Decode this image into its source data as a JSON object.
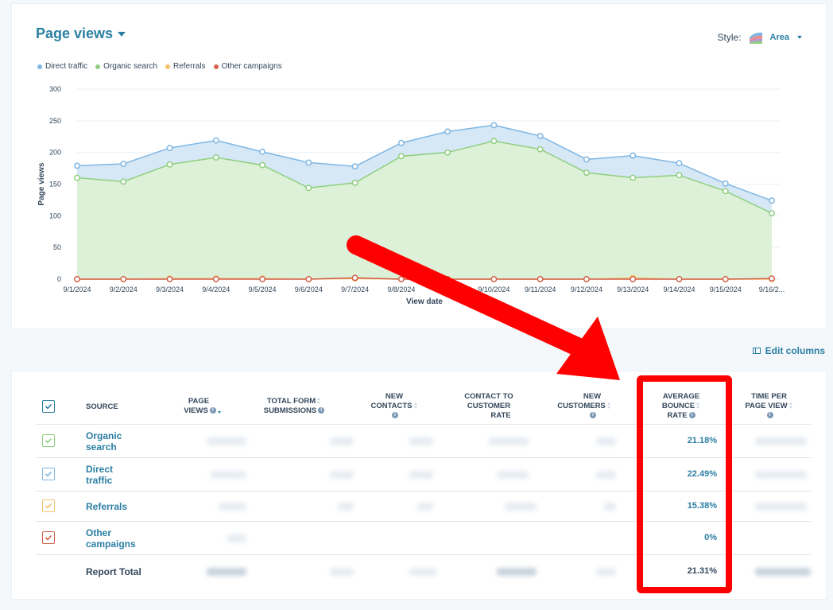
{
  "header": {
    "title": "Page views",
    "style_label": "Style:",
    "style_value": "Area"
  },
  "legend": [
    {
      "label": "Direct traffic",
      "color": "#7fb7e3"
    },
    {
      "label": "Organic search",
      "color": "#8fcf7f"
    },
    {
      "label": "Referrals",
      "color": "#f5c26b"
    },
    {
      "label": "Other campaigns",
      "color": "#d0614b"
    }
  ],
  "chart_data": {
    "type": "area",
    "title": "Page views",
    "xlabel": "View date",
    "ylabel": "Page views",
    "ylim": [
      0,
      300
    ],
    "yticks": [
      0,
      50,
      100,
      150,
      200,
      250,
      300
    ],
    "categories": [
      "9/1/2024",
      "9/2/2024",
      "9/3/2024",
      "9/4/2024",
      "9/5/2024",
      "9/6/2024",
      "9/7/2024",
      "9/8/2024",
      "9/9/2024",
      "9/10/2024",
      "9/11/2024",
      "9/12/2024",
      "9/13/2024",
      "9/14/2024",
      "9/15/2024",
      "9/16/2..."
    ],
    "series": [
      {
        "name": "Direct traffic",
        "color": "#7fb7e3",
        "fill": "#d6e7f6",
        "values": [
          179,
          182,
          207,
          219,
          201,
          184,
          178,
          215,
          233,
          243,
          226,
          189,
          195,
          183,
          151,
          124
        ]
      },
      {
        "name": "Organic search",
        "color": "#8fcf7f",
        "fill": "#ddf0d8",
        "values": [
          160,
          154,
          181,
          192,
          180,
          144,
          152,
          194,
          200,
          218,
          205,
          168,
          160,
          164,
          139,
          104
        ]
      },
      {
        "name": "Referrals",
        "color": "#f5c26b",
        "values": [
          0,
          0,
          1,
          1,
          1,
          0,
          1,
          0,
          0,
          0,
          0,
          0,
          2,
          0,
          0,
          0
        ]
      },
      {
        "name": "Other campaigns",
        "color": "#d0614b",
        "values": [
          0,
          0,
          0,
          0,
          0,
          0,
          2,
          0,
          0,
          0,
          0,
          0,
          0,
          0,
          0,
          1
        ]
      }
    ],
    "grid": true,
    "legend_position": "top-left"
  },
  "edit_columns": "Edit columns",
  "table": {
    "headers": {
      "source": "SOURCE",
      "page_views": [
        "PAGE",
        "VIEWS"
      ],
      "form_submissions": [
        "TOTAL FORM",
        "SUBMISSIONS"
      ],
      "new_contacts": [
        "NEW",
        "CONTACTS"
      ],
      "contact_rate": [
        "CONTACT TO",
        "CUSTOMER",
        "RATE"
      ],
      "new_customers": [
        "NEW",
        "CUSTOMERS"
      ],
      "bounce_rate": [
        "AVERAGE",
        "BOUNCE",
        "RATE"
      ],
      "time_per_view": [
        "TIME PER",
        "PAGE VIEW"
      ]
    },
    "rows": [
      {
        "source": [
          "Organic",
          "search"
        ],
        "checkbox_color": "#8fcf7f",
        "bounce_rate": "21.18%"
      },
      {
        "source": [
          "Direct",
          "traffic"
        ],
        "checkbox_color": "#7fb7e3",
        "bounce_rate": "22.49%"
      },
      {
        "source": [
          "Referrals"
        ],
        "checkbox_color": "#f5c26b",
        "bounce_rate": "15.38%"
      },
      {
        "source": [
          "Other",
          "campaigns"
        ],
        "checkbox_color": "#d0614b",
        "bounce_rate": "0%"
      }
    ],
    "total": {
      "source": "Report Total",
      "bounce_rate": "21.31%"
    }
  }
}
